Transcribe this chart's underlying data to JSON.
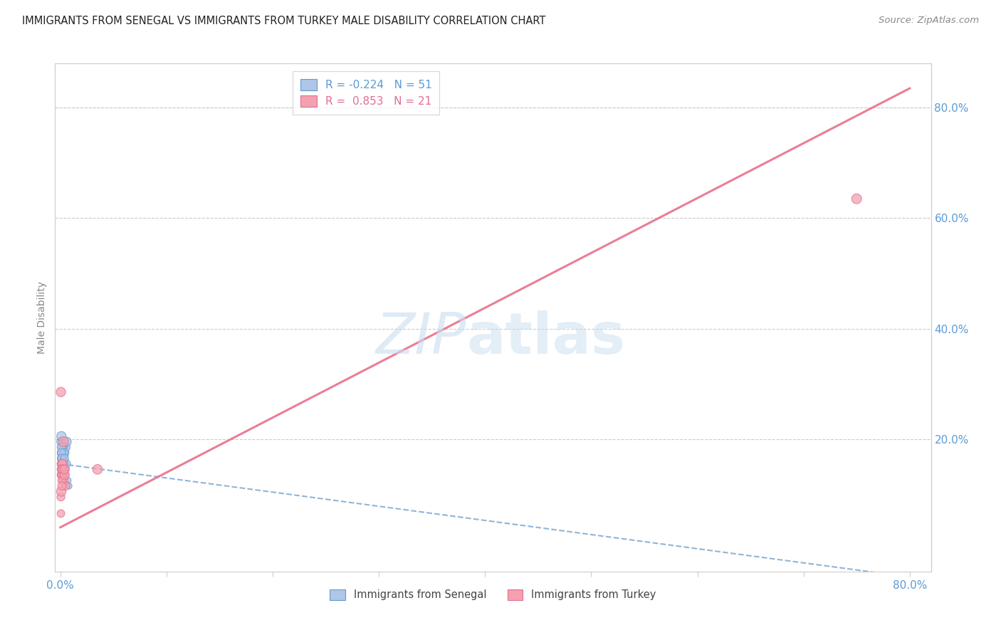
{
  "title": "IMMIGRANTS FROM SENEGAL VS IMMIGRANTS FROM TURKEY MALE DISABILITY CORRELATION CHART",
  "source": "Source: ZipAtlas.com",
  "ylabel": "Male Disability",
  "xlim": [
    -0.005,
    0.82
  ],
  "ylim": [
    -0.04,
    0.88
  ],
  "xtick_positions": [
    0.0,
    0.1,
    0.2,
    0.3,
    0.4,
    0.5,
    0.6,
    0.7,
    0.8
  ],
  "xtick_labels": [
    "0.0%",
    "",
    "",
    "",
    "",
    "",
    "",
    "",
    "80.0%"
  ],
  "ytick_vals": [
    0.2,
    0.4,
    0.6,
    0.8
  ],
  "ytick_labels": [
    "20.0%",
    "40.0%",
    "60.0%",
    "80.0%"
  ],
  "legend_r_senegal": "-0.224",
  "legend_n_senegal": "51",
  "legend_r_turkey": "0.853",
  "legend_n_turkey": "21",
  "senegal_color": "#aec6e8",
  "turkey_color": "#f4a0b0",
  "senegal_edge_color": "#6699cc",
  "turkey_edge_color": "#e07090",
  "senegal_line_color": "#7aa8d0",
  "turkey_line_color": "#e8708a",
  "watermark_zip_color": "#c8dff0",
  "watermark_atlas_color": "#c8dff0",
  "senegal_x": [
    0.001,
    0.002,
    0.001,
    0.003,
    0.001,
    0.002,
    0.004,
    0.001,
    0.005,
    0.002,
    0.001,
    0.003,
    0.002,
    0.001,
    0.006,
    0.002,
    0.003,
    0.001,
    0.004,
    0.002,
    0.001,
    0.003,
    0.001,
    0.002,
    0.001,
    0.004,
    0.002,
    0.001,
    0.003,
    0.002,
    0.005,
    0.001,
    0.002,
    0.003,
    0.001,
    0.004,
    0.002,
    0.001,
    0.006,
    0.002,
    0.001,
    0.003,
    0.002,
    0.001,
    0.007,
    0.002,
    0.003,
    0.001,
    0.004,
    0.002,
    0.008
  ],
  "senegal_y": [
    0.195,
    0.175,
    0.155,
    0.185,
    0.165,
    0.145,
    0.175,
    0.205,
    0.185,
    0.165,
    0.155,
    0.175,
    0.145,
    0.135,
    0.195,
    0.165,
    0.155,
    0.175,
    0.145,
    0.185,
    0.155,
    0.165,
    0.145,
    0.135,
    0.175,
    0.155,
    0.165,
    0.145,
    0.175,
    0.155,
    0.145,
    0.185,
    0.165,
    0.155,
    0.135,
    0.175,
    0.145,
    0.165,
    0.155,
    0.145,
    0.175,
    0.135,
    0.155,
    0.165,
    0.125,
    0.145,
    0.155,
    0.135,
    0.165,
    0.125,
    0.115
  ],
  "senegal_sizes": [
    90,
    70,
    60,
    80,
    65,
    55,
    75,
    90,
    80,
    65,
    55,
    70,
    60,
    50,
    85,
    65,
    60,
    70,
    55,
    75,
    60,
    65,
    55,
    50,
    70,
    60,
    65,
    55,
    70,
    60,
    55,
    75,
    65,
    60,
    50,
    70,
    55,
    65,
    60,
    55,
    70,
    50,
    60,
    65,
    45,
    55,
    60,
    50,
    65,
    45,
    40
  ],
  "turkey_x": [
    0.0005,
    0.001,
    0.003,
    0.0008,
    0.002,
    0.004,
    0.001,
    0.0005,
    0.003,
    0.0015,
    0.002,
    0.0008,
    0.005,
    0.0015,
    0.0005,
    0.002,
    0.004,
    0.0015,
    0.75,
    0.035,
    0.004
  ],
  "turkey_y": [
    0.285,
    0.155,
    0.195,
    0.135,
    0.155,
    0.135,
    0.145,
    0.095,
    0.125,
    0.135,
    0.145,
    0.105,
    0.115,
    0.125,
    0.065,
    0.145,
    0.135,
    0.115,
    0.635,
    0.145,
    0.145
  ],
  "turkey_sizes": [
    90,
    80,
    100,
    70,
    85,
    75,
    80,
    65,
    85,
    75,
    80,
    95,
    75,
    70,
    60,
    80,
    90,
    75,
    100,
    95,
    80
  ],
  "senegal_trendline_x0": 0.0,
  "senegal_trendline_y0": 0.155,
  "senegal_trendline_x1": 0.8,
  "senegal_trendline_y1": -0.05,
  "turkey_trendline_x0": 0.0,
  "turkey_trendline_y0": 0.04,
  "turkey_trendline_x1": 0.8,
  "turkey_trendline_y1": 0.835
}
